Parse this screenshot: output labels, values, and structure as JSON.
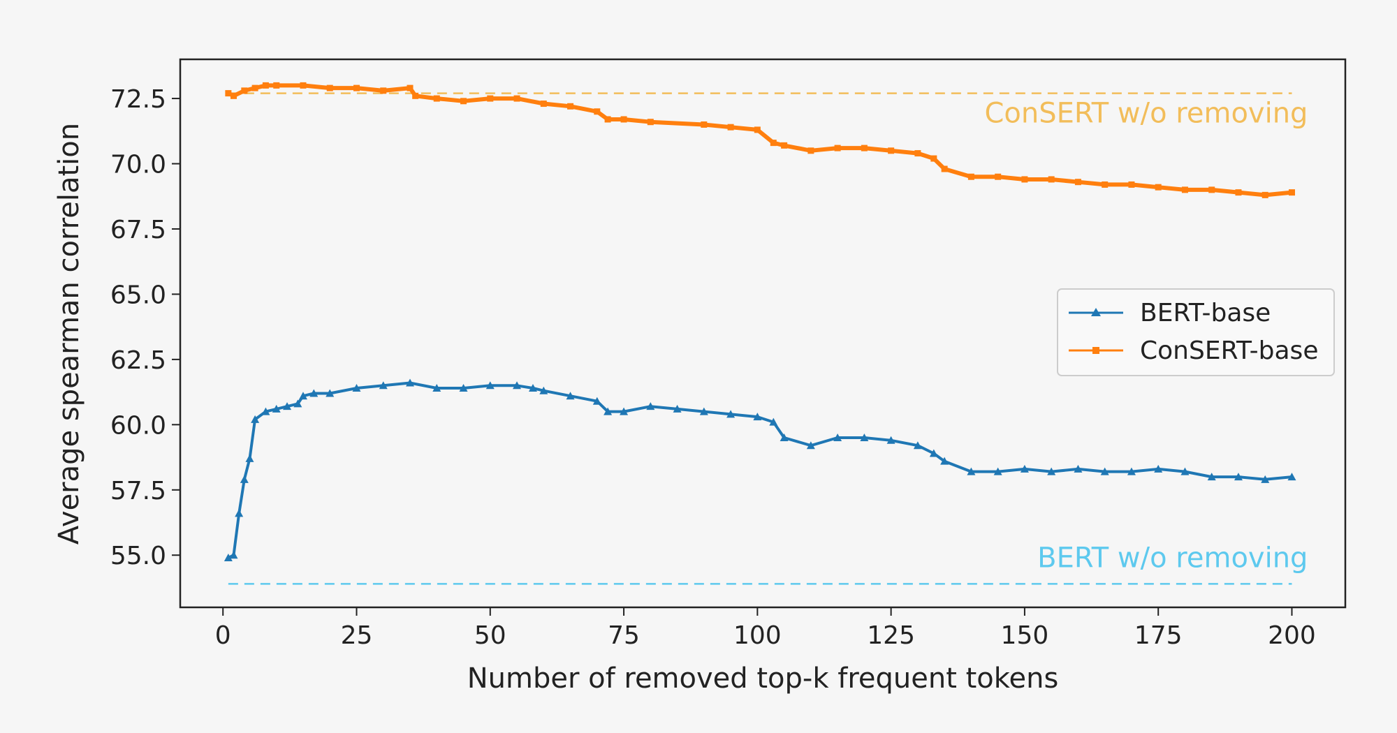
{
  "chart_data": {
    "type": "line",
    "title": "",
    "xlabel": "Number of removed top-k frequent tokens",
    "ylabel": "Average spearman correlation",
    "xlim": [
      -8,
      210
    ],
    "ylim": [
      53.0,
      74.0
    ],
    "xticks": [
      "0",
      "25",
      "50",
      "75",
      "100",
      "125",
      "150",
      "175",
      "200"
    ],
    "xtick_values": [
      0,
      25,
      50,
      75,
      100,
      125,
      150,
      175,
      200
    ],
    "yticks": [
      "55.0",
      "57.5",
      "60.0",
      "62.5",
      "65.0",
      "67.5",
      "70.0",
      "72.5"
    ],
    "ytick_values": [
      55.0,
      57.5,
      60.0,
      62.5,
      65.0,
      67.5,
      70.0,
      72.5
    ],
    "grid": false,
    "legend_position": "center-right",
    "series": [
      {
        "name": "BERT-base",
        "color": "#1f77b4",
        "marker": "triangle",
        "x": [
          1,
          2,
          3,
          4,
          5,
          6,
          8,
          10,
          12,
          14,
          15,
          17,
          20,
          25,
          30,
          35,
          40,
          45,
          50,
          55,
          58,
          60,
          65,
          70,
          72,
          75,
          80,
          85,
          90,
          95,
          100,
          103,
          105,
          110,
          115,
          120,
          125,
          130,
          133,
          135,
          140,
          145,
          150,
          155,
          160,
          165,
          170,
          175,
          180,
          185,
          190,
          195,
          200
        ],
        "values": [
          54.9,
          55.0,
          56.6,
          57.9,
          58.7,
          60.2,
          60.5,
          60.6,
          60.7,
          60.8,
          61.1,
          61.2,
          61.2,
          61.4,
          61.5,
          61.6,
          61.4,
          61.4,
          61.5,
          61.5,
          61.4,
          61.3,
          61.1,
          60.9,
          60.5,
          60.5,
          60.7,
          60.6,
          60.5,
          60.4,
          60.3,
          60.1,
          59.5,
          59.2,
          59.5,
          59.5,
          59.4,
          59.2,
          58.9,
          58.6,
          58.2,
          58.2,
          58.3,
          58.2,
          58.3,
          58.2,
          58.2,
          58.3,
          58.2,
          58.0,
          58.0,
          57.9,
          58.0
        ]
      },
      {
        "name": "ConSERT-base",
        "color": "#ff7f0e",
        "marker": "square",
        "x": [
          1,
          2,
          4,
          6,
          8,
          10,
          15,
          20,
          25,
          30,
          35,
          36,
          40,
          45,
          50,
          55,
          60,
          65,
          70,
          72,
          75,
          80,
          90,
          95,
          100,
          103,
          105,
          110,
          115,
          120,
          125,
          130,
          133,
          135,
          140,
          145,
          150,
          155,
          160,
          165,
          170,
          175,
          180,
          185,
          190,
          195,
          200
        ],
        "values": [
          72.7,
          72.6,
          72.8,
          72.9,
          73.0,
          73.0,
          73.0,
          72.9,
          72.9,
          72.8,
          72.9,
          72.6,
          72.5,
          72.4,
          72.5,
          72.5,
          72.3,
          72.2,
          72.0,
          71.7,
          71.7,
          71.6,
          71.5,
          71.4,
          71.3,
          70.8,
          70.7,
          70.5,
          70.6,
          70.6,
          70.5,
          70.4,
          70.2,
          69.8,
          69.5,
          69.5,
          69.4,
          69.4,
          69.3,
          69.2,
          69.2,
          69.1,
          69.0,
          69.0,
          68.9,
          68.8,
          68.9
        ]
      }
    ],
    "reference_lines": [
      {
        "label": "ConSERT w/o removing",
        "value": 72.7,
        "color": "#f2bd5a"
      },
      {
        "label": "BERT w/o removing",
        "value": 53.9,
        "color": "#5dc9ee"
      }
    ]
  }
}
